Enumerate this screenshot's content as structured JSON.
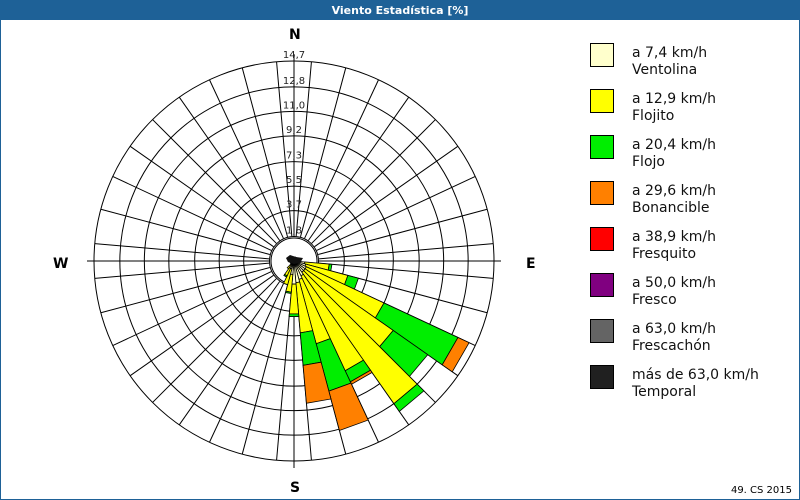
{
  "title": "Viento Estadística [%]",
  "footer": "49. CS 2015",
  "compass": {
    "n": "N",
    "e": "E",
    "s": "S",
    "w": "W"
  },
  "legend": [
    {
      "speed": "a 7,4 km/h",
      "name": "Ventolina",
      "color": "#ffffcc"
    },
    {
      "speed": "a 12,9 km/h",
      "name": "Flojito",
      "color": "#ffff00"
    },
    {
      "speed": "a 20,4 km/h",
      "name": "Flojo",
      "color": "#00ee00"
    },
    {
      "speed": "a 29,6 km/h",
      "name": "Bonancible",
      "color": "#ff8000"
    },
    {
      "speed": "a 38,9 km/h",
      "name": "Fresquito",
      "color": "#ff0000"
    },
    {
      "speed": "a 50,0 km/h",
      "name": "Fresco",
      "color": "#800080"
    },
    {
      "speed": "a 63,0 km/h",
      "name": "Frescachón",
      "color": "#646464"
    },
    {
      "speed": "más de 63,0 km/h",
      "name": "Temporal",
      "color": "#202020"
    }
  ],
  "chart_data": {
    "type": "polar-stacked-bar (wind rose)",
    "title": "Viento Estadística [%]",
    "radial_unit": "%",
    "radial_ticks": [
      1.8,
      3.7,
      5.5,
      7.3,
      9.2,
      11.0,
      12.8,
      14.7
    ],
    "radial_tick_labels": [
      "1,8",
      "3,7",
      "5,5",
      "7,3",
      "9,2",
      "11,0",
      "12,8",
      "14,7"
    ],
    "rmax": 14.7,
    "sector_width_deg": 10,
    "directions_deg": [
      0,
      10,
      20,
      30,
      40,
      50,
      60,
      70,
      80,
      90,
      100,
      110,
      120,
      130,
      140,
      150,
      160,
      170,
      180,
      190,
      200,
      210,
      220,
      230,
      240,
      250,
      260,
      270,
      280,
      290,
      300,
      310,
      320,
      330,
      340,
      350
    ],
    "series": [
      {
        "name": "Ventolina (a 7,4 km/h)",
        "color": "#ffffcc",
        "values": [
          0.3,
          0.3,
          0.3,
          0.3,
          0.3,
          0.3,
          0.3,
          0.3,
          0.3,
          0.4,
          0.8,
          0.9,
          1.0,
          1.0,
          1.0,
          1.2,
          1.4,
          1.6,
          1.7,
          1.0,
          0.6,
          0.6,
          0.4,
          0.3,
          0.3,
          0.3,
          0.3,
          0.3,
          0.3,
          0.3,
          0.3,
          0.3,
          0.3,
          0.3,
          0.3,
          0.3
        ]
      },
      {
        "name": "Flojito (a 12,9 km/h)",
        "color": "#ffff00",
        "values": [
          0,
          0,
          0,
          0,
          0,
          0,
          0,
          0,
          0,
          0.1,
          1.8,
          3.2,
          6.3,
          7.9,
          11.8,
          7.7,
          4.9,
          3.7,
          2.2,
          1.3,
          1.2,
          0.6,
          0.3,
          0,
          0,
          0,
          0,
          0,
          0,
          0,
          0,
          0,
          0,
          0,
          0,
          0
        ]
      },
      {
        "name": "Flojo (a 20,4 km/h)",
        "color": "#00ee00",
        "values": [
          0,
          0,
          0,
          0,
          0,
          0,
          0,
          0,
          0,
          0,
          0.2,
          0.8,
          6.0,
          3.1,
          0.7,
          0.9,
          3.6,
          2.4,
          0.2,
          0.1,
          0,
          0.1,
          0,
          0,
          0,
          0,
          0,
          0,
          0,
          0,
          0,
          0,
          0,
          0,
          0,
          0
        ]
      },
      {
        "name": "Bonancible (a 29,6 km/h)",
        "color": "#ff8000",
        "values": [
          0,
          0,
          0,
          0,
          0,
          0,
          0,
          0,
          0,
          0,
          0,
          0,
          0.9,
          0,
          0,
          0.2,
          3.0,
          2.8,
          0,
          0,
          0,
          0,
          0,
          0,
          0,
          0,
          0,
          0,
          0,
          0,
          0,
          0,
          0,
          0,
          0,
          0
        ]
      },
      {
        "name": "Fresquito (a 38,9 km/h)",
        "color": "#ff0000",
        "values": [
          0,
          0,
          0,
          0,
          0,
          0,
          0,
          0,
          0,
          0,
          0,
          0,
          0,
          0,
          0,
          0,
          0,
          0,
          0,
          0,
          0,
          0,
          0,
          0,
          0,
          0,
          0,
          0,
          0,
          0,
          0,
          0,
          0,
          0,
          0,
          0
        ]
      },
      {
        "name": "Fresco (a 50,0 km/h)",
        "color": "#800080",
        "values": [
          0,
          0,
          0,
          0,
          0,
          0,
          0,
          0,
          0,
          0,
          0,
          0,
          0,
          0,
          0,
          0,
          0,
          0,
          0,
          0,
          0,
          0,
          0,
          0,
          0,
          0,
          0,
          0,
          0,
          0,
          0,
          0,
          0,
          0,
          0,
          0
        ]
      },
      {
        "name": "Frescachón (a 63,0 km/h)",
        "color": "#646464",
        "values": [
          0,
          0,
          0,
          0,
          0,
          0,
          0,
          0,
          0,
          0,
          0,
          0,
          0,
          0,
          0,
          0,
          0,
          0,
          0,
          0,
          0,
          0,
          0,
          0,
          0,
          0,
          0,
          0,
          0,
          0,
          0,
          0,
          0,
          0,
          0,
          0
        ]
      },
      {
        "name": "Temporal (más de 63,0 km/h)",
        "color": "#202020",
        "values": [
          0,
          0,
          0,
          0,
          0,
          0,
          0,
          0,
          0,
          0,
          0,
          0,
          0,
          0,
          0,
          0,
          0,
          0,
          0,
          0,
          0,
          0,
          0,
          0,
          0,
          0,
          0,
          0,
          0,
          0,
          0,
          0,
          0,
          0,
          0,
          0
        ]
      }
    ],
    "legend_position": "right",
    "grid": true
  }
}
